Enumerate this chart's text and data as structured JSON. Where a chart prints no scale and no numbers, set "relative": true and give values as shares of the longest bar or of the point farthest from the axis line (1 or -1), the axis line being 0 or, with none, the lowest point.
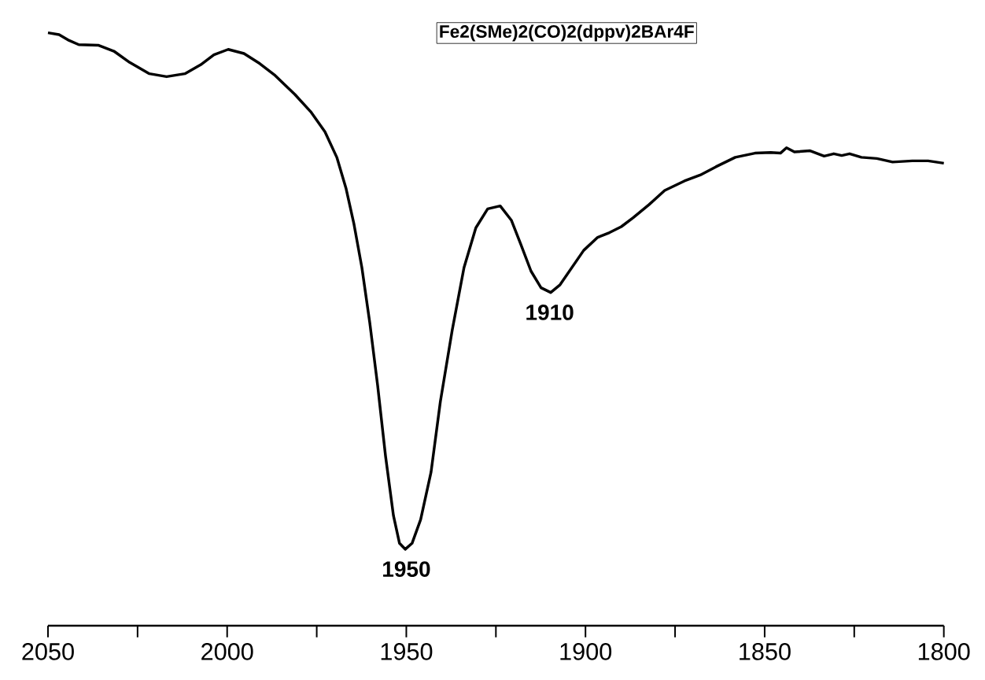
{
  "chart_data": {
    "type": "line",
    "title": "Fe2(SMe)2(CO)2(dppv)2BAr4F",
    "relative": true,
    "color": "#000000",
    "x": [
      2050,
      2046.9,
      2044.1,
      2041.4,
      2036.0,
      2031.6,
      2027.2,
      2021.7,
      2016.9,
      2011.8,
      2007.4,
      2003.7,
      1999.7,
      1995.3,
      1990.9,
      1986.6,
      1981.1,
      1976.7,
      1972.7,
      1969.4,
      1966.8,
      1964.6,
      1962.4,
      1960.2,
      1958.0,
      1955.8,
      1953.6,
      1951.9,
      1950.3,
      1948.4,
      1946.0,
      1943.1,
      1940.5,
      1937.2,
      1933.9,
      1930.6,
      1927.3,
      1923.8,
      1920.7,
      1918.1,
      1915.2,
      1912.4,
      1909.7,
      1907.1,
      1903.8,
      1900.5,
      1896.6,
      1893.3,
      1890.0,
      1886.7,
      1882.3,
      1877.9,
      1872.4,
      1868.0,
      1863.6,
      1858.2,
      1852.7,
      1848.3,
      1845.6,
      1843.9,
      1841.7,
      1837.3,
      1833.4,
      1830.7,
      1828.5,
      1826.3,
      1823.0,
      1818.7,
      1814.3,
      1808.8,
      1804.4,
      1800.0
    ],
    "values": [
      1.0,
      0.997,
      0.987,
      0.98,
      0.979,
      0.969,
      0.95,
      0.931,
      0.926,
      0.931,
      0.946,
      0.963,
      0.972,
      0.965,
      0.948,
      0.928,
      0.896,
      0.867,
      0.833,
      0.79,
      0.737,
      0.677,
      0.604,
      0.511,
      0.405,
      0.286,
      0.186,
      0.139,
      0.129,
      0.139,
      0.179,
      0.259,
      0.378,
      0.498,
      0.604,
      0.671,
      0.703,
      0.708,
      0.684,
      0.644,
      0.598,
      0.57,
      0.562,
      0.575,
      0.604,
      0.633,
      0.655,
      0.663,
      0.673,
      0.688,
      0.71,
      0.734,
      0.75,
      0.76,
      0.774,
      0.79,
      0.797,
      0.798,
      0.797,
      0.806,
      0.799,
      0.801,
      0.792,
      0.796,
      0.793,
      0.796,
      0.79,
      0.788,
      0.782,
      0.784,
      0.784,
      0.78
    ],
    "xlim": [
      2050,
      1800
    ],
    "xticks": [
      2050,
      {
        "value": 2025,
        "label": null
      },
      2000,
      {
        "value": 1975,
        "label": null
      },
      1950,
      {
        "value": 1925,
        "label": null
      },
      1900,
      {
        "value": 1875,
        "label": null
      },
      1850,
      {
        "value": 1825,
        "label": null
      },
      1800
    ],
    "annotations": [
      {
        "text": "1950",
        "x": 1950,
        "y": 0.129
      },
      {
        "text": "1910",
        "x": 1910,
        "y": 0.562
      }
    ],
    "grid": false,
    "marker": "none",
    "line_style": "solid"
  }
}
